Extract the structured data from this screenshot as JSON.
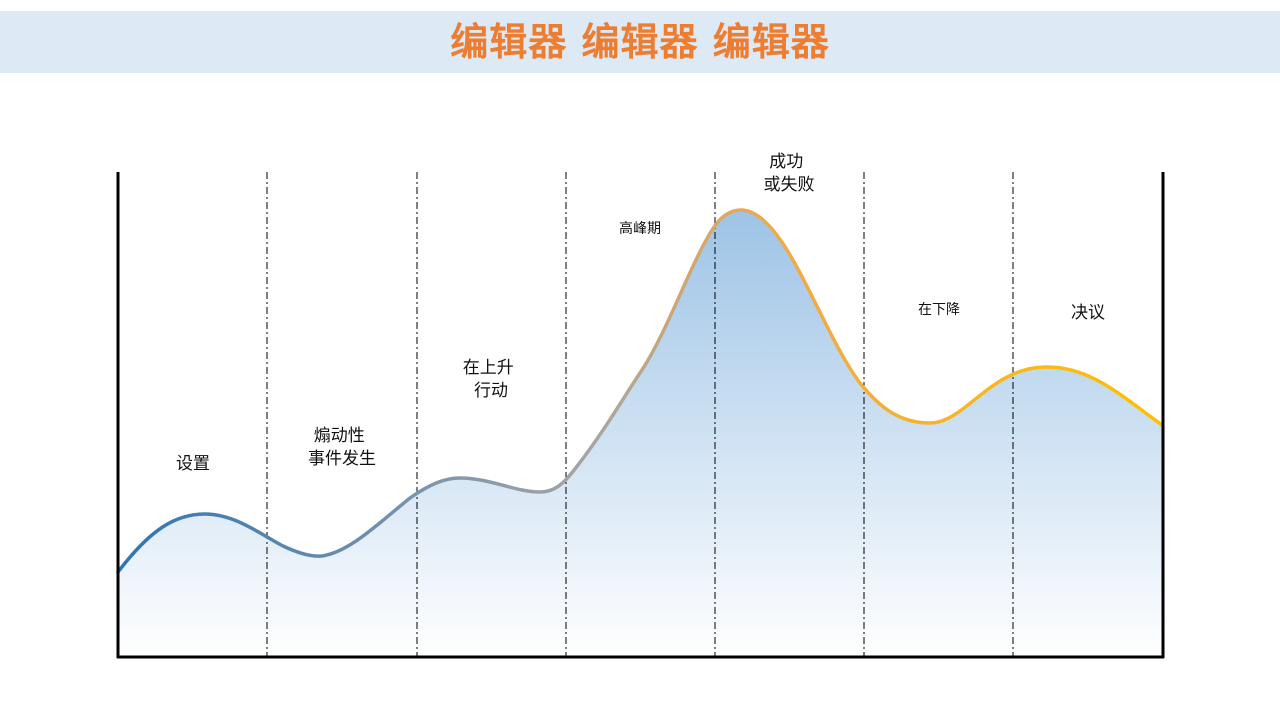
{
  "title": "编辑器 编辑器 编辑器",
  "stages": [
    {
      "lines": [
        "设置"
      ]
    },
    {
      "lines": [
        "煽动性",
        "事件发生"
      ]
    },
    {
      "lines": [
        "在上升",
        "行动"
      ]
    },
    {
      "lines": [
        "高峰期"
      ]
    },
    {
      "lines": [
        "成功",
        "或失败"
      ]
    },
    {
      "lines": [
        "在下降"
      ]
    },
    {
      "lines": [
        "决议"
      ]
    }
  ],
  "colors": {
    "title": "#ed7d31",
    "title_band": "#dde9f5",
    "curve_start": "#2e75b6",
    "curve_mid": "#a5a5a5",
    "curve_end": "#ffc000",
    "fill_top": "#9dc3e6",
    "fill_bottom": "#ffffff",
    "axis": "#000000",
    "divider": "#000000"
  }
}
